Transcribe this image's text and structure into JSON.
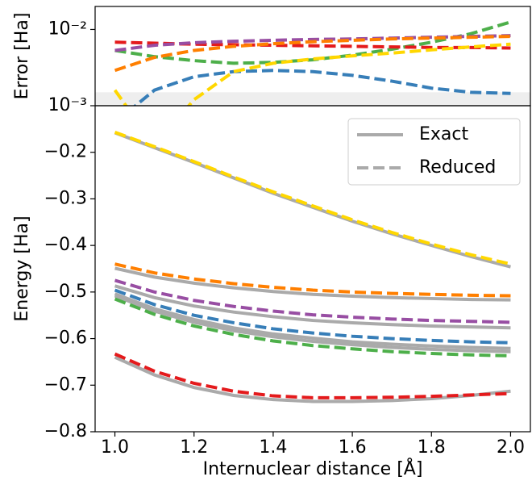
{
  "chart_data": [
    {
      "type": "line",
      "ylabel": "Error [Ha]",
      "log_y": true,
      "x": [
        1.0,
        1.1,
        1.2,
        1.3,
        1.4,
        1.5,
        1.6,
        1.7,
        1.8,
        1.9,
        2.0
      ],
      "xlim": [
        0.95,
        2.05
      ],
      "ylim": [
        0.001,
        0.02
      ],
      "yticks": [
        {
          "value": 0.001,
          "label": "10⁻³"
        },
        {
          "value": 0.01,
          "label": "10⁻²"
        }
      ],
      "shade": [
        0.001,
        0.0015
      ],
      "shade_color": "#eeeeee",
      "series": [
        {
          "color": "#4daf4a",
          "style": "dashed",
          "values": [
            0.0053,
            0.0044,
            0.0039,
            0.0036,
            0.0037,
            0.004,
            0.0046,
            0.0055,
            0.0068,
            0.0088,
            0.0125
          ]
        },
        {
          "color": "#e41a1c",
          "style": "dashed",
          "values": [
            0.0068,
            0.0066,
            0.0064,
            0.0063,
            0.0062,
            0.0061,
            0.006,
            0.0059,
            0.0058,
            0.0058,
            0.0057
          ]
        },
        {
          "color": "#984ea3",
          "style": "dashed",
          "values": [
            0.0053,
            0.0062,
            0.0067,
            0.007,
            0.0072,
            0.0074,
            0.0075,
            0.0077,
            0.0079,
            0.0081,
            0.0083
          ]
        },
        {
          "color": "#ff7f00",
          "style": "dashed",
          "values": [
            0.0029,
            0.0043,
            0.0053,
            0.006,
            0.0065,
            0.0069,
            0.0072,
            0.0075,
            0.0077,
            0.0079,
            0.0081
          ]
        },
        {
          "color": "#377eb8",
          "style": "dashed",
          "values": [
            0.0006,
            0.0016,
            0.0024,
            0.0028,
            0.0029,
            0.0028,
            0.0025,
            0.0021,
            0.0017,
            0.0015,
            0.00145
          ]
        },
        {
          "color": "#ffd700",
          "style": "dashed",
          "values": [
            0.0016,
            0.0003,
            0.0012,
            0.0028,
            0.0036,
            0.0041,
            0.0045,
            0.0049,
            0.0054,
            0.0059,
            0.0064
          ]
        }
      ]
    },
    {
      "type": "line",
      "xlabel": "Internuclear distance [Å]",
      "ylabel": "Energy [Ha]",
      "x": [
        1.0,
        1.1,
        1.2,
        1.3,
        1.4,
        1.5,
        1.6,
        1.7,
        1.8,
        1.9,
        2.0
      ],
      "xlim": [
        0.95,
        2.05
      ],
      "ylim": [
        -0.8,
        -0.1
      ],
      "xticks": [
        {
          "value": 1.0,
          "label": "1.0"
        },
        1.2,
        1.4,
        1.6,
        1.8,
        {
          "value": 2.0,
          "label": "2.0"
        }
      ],
      "yticks": [
        {
          "value": -0.8,
          "label": "−0.8"
        },
        {
          "value": -0.7,
          "label": "−0.7"
        },
        {
          "value": -0.6,
          "label": "−0.6"
        },
        {
          "value": -0.5,
          "label": "−0.5"
        },
        {
          "value": -0.4,
          "label": "−0.4"
        },
        {
          "value": -0.3,
          "label": "−0.3"
        },
        {
          "value": -0.2,
          "label": "−0.2"
        }
      ],
      "legend_corner": "upper right",
      "legend": [
        {
          "label": "Exact",
          "style": "solid",
          "color": "#aaaaaa"
        },
        {
          "label": "Reduced",
          "style": "dashed",
          "color": "#aaaaaa"
        }
      ],
      "series": [
        {
          "color": "#aaaaaa",
          "style": "solid",
          "values": [
            -0.158,
            -0.19,
            -0.222,
            -0.255,
            -0.288,
            -0.318,
            -0.348,
            -0.375,
            -0.4,
            -0.424,
            -0.446
          ]
        },
        {
          "color": "#aaaaaa",
          "style": "solid",
          "values": [
            -0.449,
            -0.468,
            -0.481,
            -0.491,
            -0.499,
            -0.505,
            -0.509,
            -0.512,
            -0.514,
            -0.516,
            -0.517
          ]
        },
        {
          "color": "#aaaaaa",
          "style": "solid",
          "values": [
            -0.487,
            -0.512,
            -0.53,
            -0.543,
            -0.553,
            -0.561,
            -0.566,
            -0.57,
            -0.573,
            -0.575,
            -0.577
          ]
        },
        {
          "color": "#aaaaaa",
          "style": "solid",
          "values": [
            -0.504,
            -0.536,
            -0.559,
            -0.577,
            -0.59,
            -0.599,
            -0.607,
            -0.612,
            -0.616,
            -0.619,
            -0.621
          ]
        },
        {
          "color": "#aaaaaa",
          "style": "solid",
          "values": [
            -0.508,
            -0.541,
            -0.565,
            -0.583,
            -0.596,
            -0.606,
            -0.613,
            -0.619,
            -0.623,
            -0.626,
            -0.628
          ]
        },
        {
          "color": "#aaaaaa",
          "style": "solid",
          "values": [
            -0.64,
            -0.678,
            -0.705,
            -0.722,
            -0.731,
            -0.735,
            -0.735,
            -0.733,
            -0.729,
            -0.722,
            -0.713
          ]
        },
        {
          "color": "#ffd700",
          "style": "dashed",
          "values": [
            -0.157,
            -0.188,
            -0.22,
            -0.253,
            -0.285,
            -0.315,
            -0.345,
            -0.372,
            -0.397,
            -0.42,
            -0.44
          ]
        },
        {
          "color": "#ff7f00",
          "style": "dashed",
          "values": [
            -0.44,
            -0.459,
            -0.472,
            -0.482,
            -0.49,
            -0.496,
            -0.5,
            -0.503,
            -0.505,
            -0.507,
            -0.508
          ]
        },
        {
          "color": "#984ea3",
          "style": "dashed",
          "values": [
            -0.475,
            -0.5,
            -0.518,
            -0.531,
            -0.541,
            -0.549,
            -0.554,
            -0.558,
            -0.561,
            -0.563,
            -0.565
          ]
        },
        {
          "color": "#377eb8",
          "style": "dashed",
          "values": [
            -0.496,
            -0.527,
            -0.55,
            -0.566,
            -0.579,
            -0.588,
            -0.595,
            -0.6,
            -0.604,
            -0.607,
            -0.609
          ]
        },
        {
          "color": "#4daf4a",
          "style": "dashed",
          "values": [
            -0.515,
            -0.548,
            -0.573,
            -0.591,
            -0.605,
            -0.615,
            -0.622,
            -0.628,
            -0.632,
            -0.635,
            -0.637
          ]
        },
        {
          "color": "#e41a1c",
          "style": "dashed",
          "values": [
            -0.633,
            -0.67,
            -0.696,
            -0.713,
            -0.723,
            -0.727,
            -0.727,
            -0.726,
            -0.724,
            -0.721,
            -0.718
          ]
        }
      ]
    }
  ]
}
